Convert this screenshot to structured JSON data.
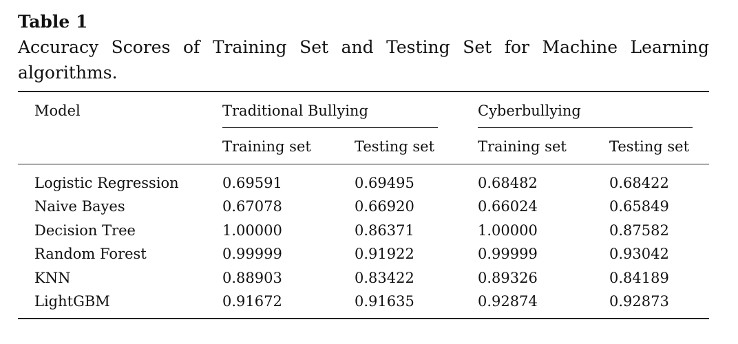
{
  "caption": {
    "label": "Table 1",
    "title": "Accuracy Scores of Training Set and Testing Set for Machine Learning algorithms."
  },
  "table": {
    "header": {
      "model": "Model",
      "groups": [
        {
          "label": "Traditional Bullying",
          "columns": [
            "Training set",
            "Testing set"
          ]
        },
        {
          "label": "Cyberbullying",
          "columns": [
            "Training set",
            "Testing set"
          ]
        }
      ]
    },
    "rows": [
      {
        "model": "Logistic Regression",
        "values": [
          "0.69591",
          "0.69495",
          "0.68482",
          "0.68422"
        ]
      },
      {
        "model": "Naive Bayes",
        "values": [
          "0.67078",
          "0.66920",
          "0.66024",
          "0.65849"
        ]
      },
      {
        "model": "Decision Tree",
        "values": [
          "1.00000",
          "0.86371",
          "1.00000",
          "0.87582"
        ]
      },
      {
        "model": "Random Forest",
        "values": [
          "0.99999",
          "0.91922",
          "0.99999",
          "0.93042"
        ]
      },
      {
        "model": "KNN",
        "values": [
          "0.88903",
          "0.83422",
          "0.89326",
          "0.84189"
        ]
      },
      {
        "model": "LightGBM",
        "values": [
          "0.91672",
          "0.91635",
          "0.92874",
          "0.92873"
        ]
      }
    ]
  }
}
